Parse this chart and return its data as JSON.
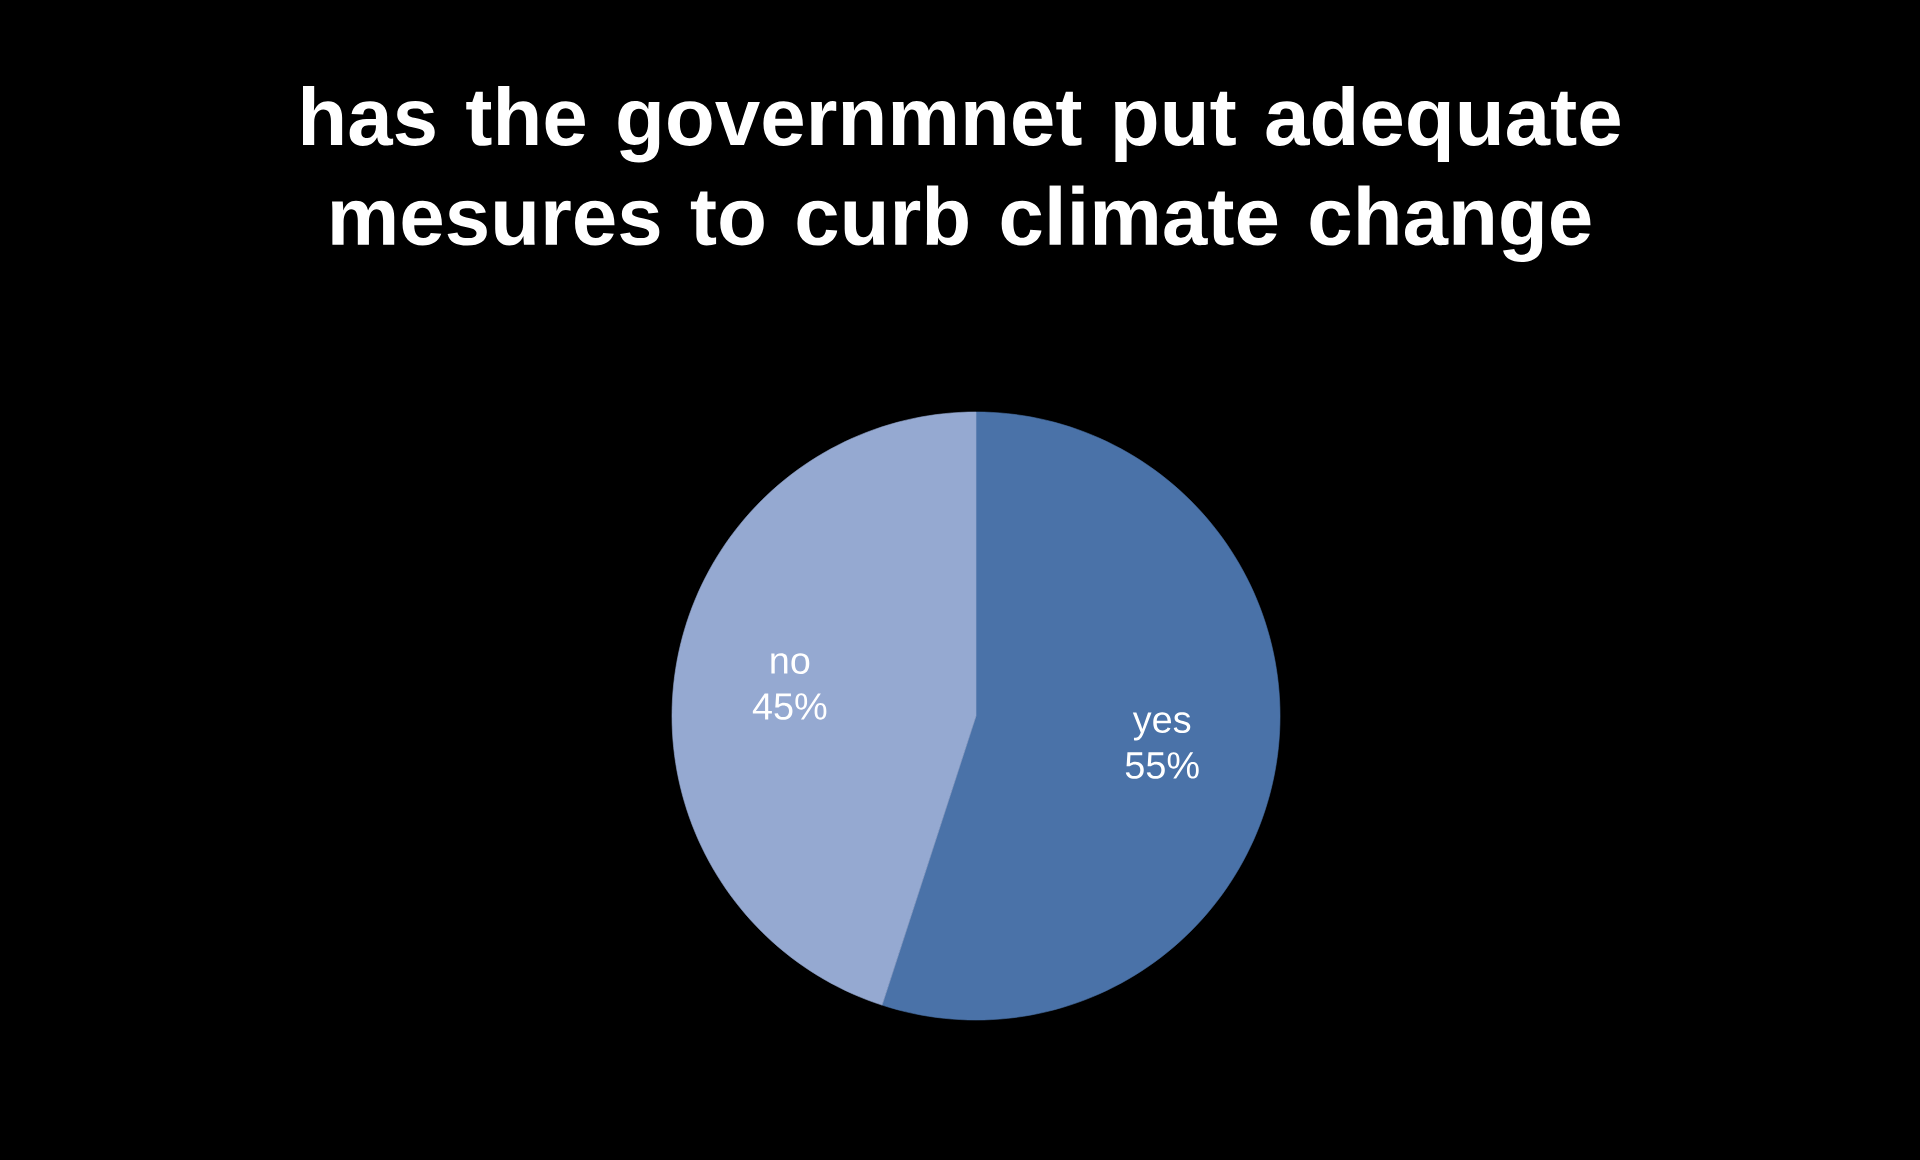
{
  "chart_data": {
    "type": "pie",
    "title": "has the governmnet put adequate mesures to curb climate change",
    "categories": [
      "yes",
      "no"
    ],
    "values": [
      55,
      45
    ],
    "colors": [
      "#4a72a8",
      "#95a9d1"
    ],
    "value_labels": [
      "55%",
      "45%"
    ]
  }
}
